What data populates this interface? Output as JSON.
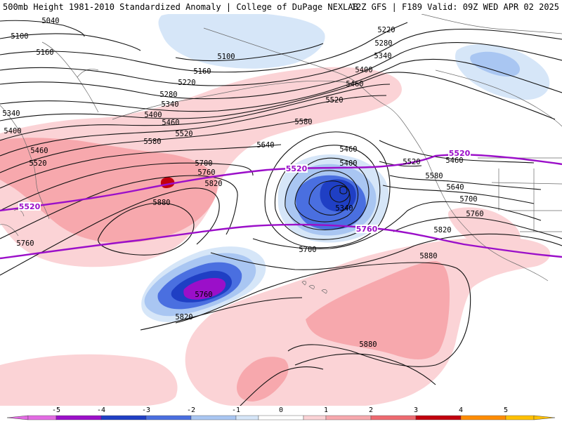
{
  "header": {
    "title": "500mb Height 1981-2010 Standardized Anomaly | College of DuPage NEXLAB",
    "run_info": "12Z GFS | F189 Valid: 09Z WED APR 02 2025"
  },
  "colors": {
    "neg5": "#e36be3",
    "neg4": "#9b0fc9",
    "neg3": "#1f3fc4",
    "neg2": "#4a6fe0",
    "neg1": "#a9c6f2",
    "neg05": "#d6e6f8",
    "pos05": "#fbd3d6",
    "pos1": "#f7a8ad",
    "pos2": "#ee6a70",
    "pos3": "#c2000e",
    "pos4": "#ff8c00",
    "pos5": "#ffc000",
    "highlight_contour": "#9b0fc9"
  },
  "contour_labels": [
    {
      "id": "l5040",
      "text": "5040"
    },
    {
      "id": "l5100a",
      "text": "5100"
    },
    {
      "id": "l5100b",
      "text": "5100"
    },
    {
      "id": "l5160a",
      "text": "5160"
    },
    {
      "id": "l5160b",
      "text": "5160"
    },
    {
      "id": "l5220a",
      "text": "5220"
    },
    {
      "id": "l5220b",
      "text": "5220"
    },
    {
      "id": "l5280a",
      "text": "5280"
    },
    {
      "id": "l5280b",
      "text": "5280"
    },
    {
      "id": "l5340a",
      "text": "5340"
    },
    {
      "id": "l5340b",
      "text": "5340"
    },
    {
      "id": "l5340c",
      "text": "5340"
    },
    {
      "id": "l5340d",
      "text": "5340"
    },
    {
      "id": "l5400a",
      "text": "5400"
    },
    {
      "id": "l5400b",
      "text": "5400"
    },
    {
      "id": "l5400c",
      "text": "5400"
    },
    {
      "id": "l5400d",
      "text": "5400"
    },
    {
      "id": "l5460a",
      "text": "5460"
    },
    {
      "id": "l5460b",
      "text": "5460"
    },
    {
      "id": "l5460c",
      "text": "5460"
    },
    {
      "id": "l5460d",
      "text": "5460"
    },
    {
      "id": "l5460e",
      "text": "5460"
    },
    {
      "id": "l5520a",
      "text": "5520"
    },
    {
      "id": "l5520b",
      "text": "5520"
    },
    {
      "id": "l5520c",
      "text": "5520"
    },
    {
      "id": "l5520d",
      "text": "5520"
    },
    {
      "id": "l5580a",
      "text": "5580"
    },
    {
      "id": "l5580b",
      "text": "5580"
    },
    {
      "id": "l5580c",
      "text": "5580"
    },
    {
      "id": "l5640a",
      "text": "5640"
    },
    {
      "id": "l5640b",
      "text": "5640"
    },
    {
      "id": "l5700a",
      "text": "5700"
    },
    {
      "id": "l5700b",
      "text": "5700"
    },
    {
      "id": "l5700c",
      "text": "5700"
    },
    {
      "id": "l5760a",
      "text": "5760"
    },
    {
      "id": "l5760b",
      "text": "5760"
    },
    {
      "id": "l5760c",
      "text": "5760"
    },
    {
      "id": "l5760d",
      "text": "5760"
    },
    {
      "id": "l5820a",
      "text": "5820"
    },
    {
      "id": "l5820b",
      "text": "5820"
    },
    {
      "id": "l5820c",
      "text": "5820"
    },
    {
      "id": "l5880a",
      "text": "5880"
    },
    {
      "id": "l5880b",
      "text": "5880"
    },
    {
      "id": "l5880c",
      "text": "5880"
    }
  ],
  "highlight_labels": [
    {
      "id": "p5520a",
      "text": "5520"
    },
    {
      "id": "p5520b",
      "text": "5520"
    },
    {
      "id": "p5520c",
      "text": "5520"
    },
    {
      "id": "p5760a",
      "text": "5760"
    }
  ],
  "colorbar": {
    "ticks": [
      "-5",
      "-4",
      "-3",
      "-2",
      "-1",
      "0",
      "1",
      "2",
      "3",
      "4",
      "5"
    ]
  }
}
